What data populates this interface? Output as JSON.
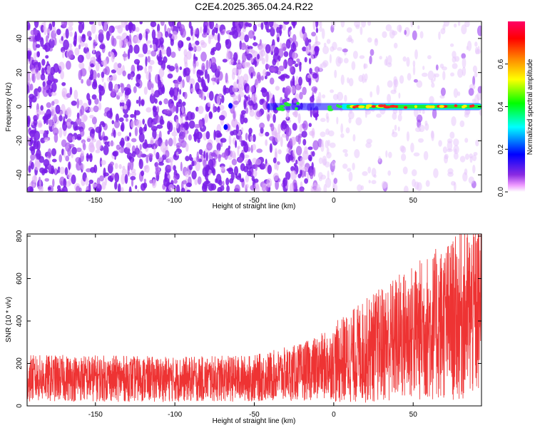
{
  "title": "C2E4.2025.365.04.24.R22",
  "chart_data": [
    {
      "type": "heatmap",
      "xlabel": "Height of straight line (km)",
      "ylabel": "Frequency (Hz)",
      "xlim": [
        -193,
        93
      ],
      "ylim": [
        -50,
        50
      ],
      "xticks": [
        -150,
        -100,
        -50,
        0,
        50
      ],
      "yticks": [
        -40,
        -20,
        0,
        20,
        40
      ],
      "colorbar": {
        "label": "Normalized spectral amplitude",
        "range": [
          0,
          0.8
        ],
        "ticks": [
          "0.0",
          "0.2",
          "0.4",
          "0.6"
        ],
        "colors": [
          "#ffffff",
          "#ee99ff",
          "#8a2be2",
          "#0000ff",
          "#00ffff",
          "#00ff00",
          "#ffff00",
          "#ff8800",
          "#ff0000",
          "#ff0066"
        ]
      },
      "features": {
        "carrier_start_km": -42,
        "carrier_frequency_hz": 0,
        "noise_fade_start_km": 0
      }
    },
    {
      "type": "line",
      "xlabel": "Height of straight line (km)",
      "ylabel": "SNR (10 * v/v)",
      "xlim": [
        -193,
        93
      ],
      "ylim": [
        0,
        810
      ],
      "xticks": [
        -150,
        -100,
        -50,
        0,
        50
      ],
      "yticks": [
        0,
        200,
        400,
        600,
        800
      ],
      "series": [
        {
          "name": "SNR",
          "color": "#ee3333",
          "trend": {
            "x": [
              -193,
              -150,
              -100,
              -50,
              -20,
              0,
              20,
              40,
              60,
              80,
              93
            ],
            "y": [
              130,
              130,
              125,
              130,
              160,
              200,
              260,
              320,
              370,
              420,
              460
            ]
          }
        }
      ]
    }
  ]
}
